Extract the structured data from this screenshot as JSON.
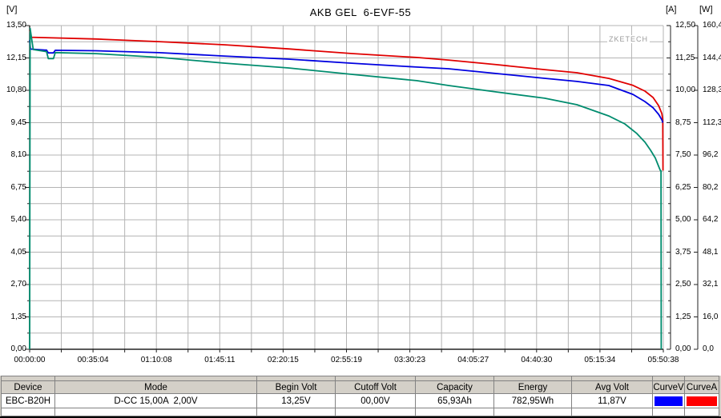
{
  "chart_data": {
    "type": "line",
    "title": "AKB GEL  6-EVF-55",
    "watermark": "ZKETECH",
    "grid": true,
    "x_total_seconds": 21038,
    "x_tick_labels": [
      "00:00:00",
      "00:35:04",
      "01:10:08",
      "01:45:11",
      "02:20:15",
      "02:55:19",
      "03:30:23",
      "04:05:27",
      "04:40:30",
      "05:15:34",
      "05:50:38"
    ],
    "axes": {
      "v": {
        "unit": "[V]",
        "min": 0,
        "max": 13.5,
        "tick_labels": [
          "13,50",
          "12,15",
          "10,80",
          "9,45",
          "8,10",
          "6,75",
          "5,40",
          "4,05",
          "2,70",
          "1,35",
          "0,00"
        ]
      },
      "a": {
        "unit": "[A]",
        "min": 0,
        "max": 12.5,
        "tick_labels": [
          "12,50",
          "11,25",
          "10,00",
          "8,75",
          "7,50",
          "6,25",
          "5,00",
          "3,75",
          "2,50",
          "1,25",
          "0,00"
        ]
      },
      "w": {
        "unit": "[W]",
        "min": 0,
        "max": 160.4,
        "tick_labels": [
          "160,4",
          "144,4",
          "128,3",
          "112,3",
          "96,2",
          "80,2",
          "64,2",
          "48,1",
          "32,1",
          "16,0",
          "0,0"
        ]
      }
    },
    "series": [
      {
        "name": "CurveA-current",
        "axis": "a",
        "color": "#e00000",
        "points": [
          [
            0,
            12.35
          ],
          [
            40,
            12.05
          ],
          [
            2200,
            11.98
          ],
          [
            4300,
            11.88
          ],
          [
            6450,
            11.76
          ],
          [
            8600,
            11.6
          ],
          [
            10700,
            11.42
          ],
          [
            12850,
            11.27
          ],
          [
            13900,
            11.17
          ],
          [
            15500,
            10.99
          ],
          [
            17100,
            10.8
          ],
          [
            18170,
            10.68
          ],
          [
            19230,
            10.46
          ],
          [
            20030,
            10.19
          ],
          [
            20430,
            9.97
          ],
          [
            20700,
            9.72
          ],
          [
            20880,
            9.41
          ],
          [
            20990,
            9.1
          ],
          [
            21020,
            8.86
          ],
          [
            21028,
            6.9
          ]
        ]
      },
      {
        "name": "CurveV-voltage",
        "axis": "v",
        "color": "#0000e0",
        "points": [
          [
            0,
            12.9
          ],
          [
            30,
            12.52
          ],
          [
            500,
            12.48
          ],
          [
            560,
            12.48
          ],
          [
            620,
            12.36
          ],
          [
            790,
            12.36
          ],
          [
            850,
            12.47
          ],
          [
            2200,
            12.45
          ],
          [
            4300,
            12.37
          ],
          [
            6450,
            12.23
          ],
          [
            8600,
            12.1
          ],
          [
            10700,
            11.93
          ],
          [
            12850,
            11.77
          ],
          [
            13900,
            11.7
          ],
          [
            15500,
            11.5
          ],
          [
            17100,
            11.3
          ],
          [
            18170,
            11.17
          ],
          [
            19230,
            11.0
          ],
          [
            20030,
            10.63
          ],
          [
            20430,
            10.33
          ],
          [
            20700,
            10.07
          ],
          [
            20880,
            9.8
          ],
          [
            20990,
            9.57
          ],
          [
            21020,
            9.45
          ]
        ]
      },
      {
        "name": "CurveW-power",
        "axis": "w",
        "color": "#008c6e",
        "points": [
          [
            0,
            0
          ],
          [
            15,
            159.0
          ],
          [
            120,
            148.5
          ],
          [
            560,
            147.5
          ],
          [
            620,
            144.0
          ],
          [
            790,
            144.0
          ],
          [
            850,
            147.0
          ],
          [
            2210,
            146.5
          ],
          [
            4340,
            144.6
          ],
          [
            6460,
            141.8
          ],
          [
            8590,
            139.4
          ],
          [
            10720,
            136.2
          ],
          [
            12850,
            133.1
          ],
          [
            13910,
            130.7
          ],
          [
            15510,
            127.5
          ],
          [
            17100,
            124.4
          ],
          [
            18170,
            121.2
          ],
          [
            19230,
            115.6
          ],
          [
            19760,
            111.7
          ],
          [
            20160,
            106.9
          ],
          [
            20430,
            102.6
          ],
          [
            20615,
            98.6
          ],
          [
            20775,
            94.7
          ],
          [
            20880,
            90.7
          ],
          [
            20940,
            88.6
          ],
          [
            20960,
            88.4
          ],
          [
            20968,
            0
          ]
        ]
      }
    ]
  },
  "table": {
    "columns": [
      "Device",
      "Mode",
      "Begin Volt",
      "Cutoff Volt",
      "Capacity",
      "Energy",
      "Avg Volt",
      "CurveV",
      "CurveA"
    ],
    "cells": [
      "EBC-B20H",
      "D-CC 15,00A  2,00V",
      "13,25V",
      "00,00V",
      "65,93Ah",
      "782,95Wh",
      "11,87V"
    ],
    "curve_v_color": "#0000ff",
    "curve_a_color": "#ff0000"
  },
  "colors": {
    "grid": "#b4b4b4",
    "axis": "#222222",
    "panel_bg": "#d4d0c8"
  }
}
